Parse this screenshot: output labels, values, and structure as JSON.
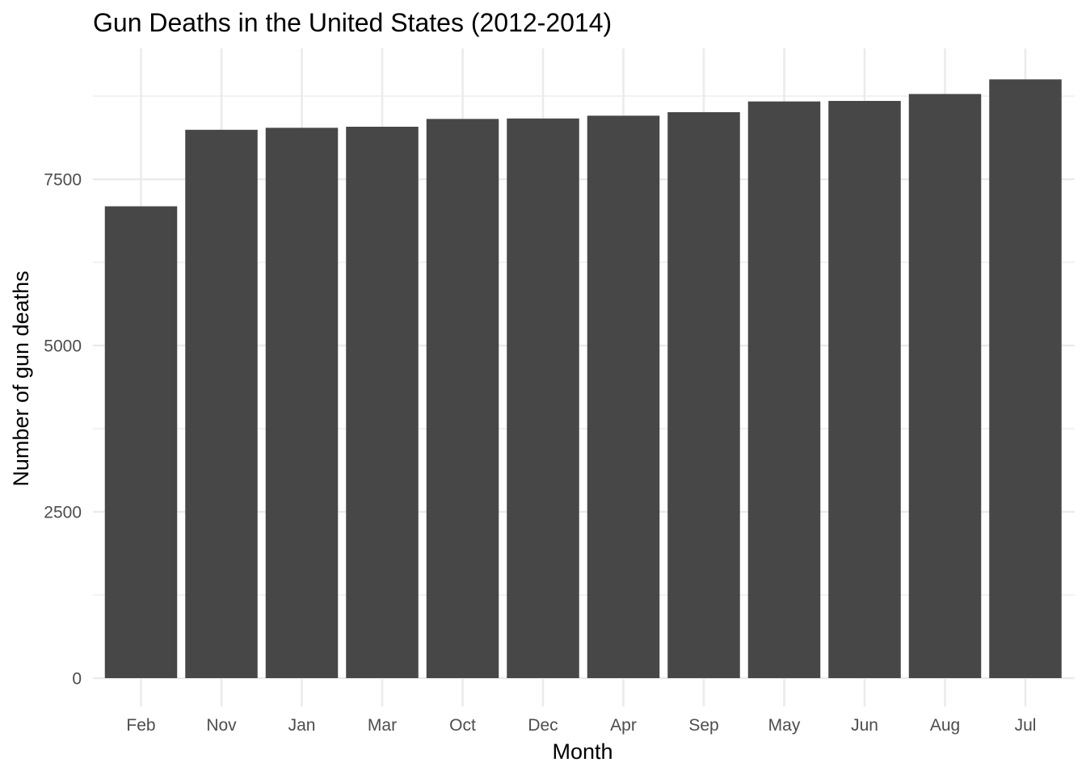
{
  "chart_data": {
    "type": "bar",
    "title": "Gun Deaths in the United States (2012-2014)",
    "xlabel": "Month",
    "ylabel": "Number of gun deaths",
    "categories": [
      "Feb",
      "Nov",
      "Jan",
      "Mar",
      "Oct",
      "Dec",
      "Apr",
      "Sep",
      "May",
      "Jun",
      "Aug",
      "Jul"
    ],
    "values": [
      7093,
      8243,
      8273,
      8289,
      8406,
      8413,
      8455,
      8508,
      8669,
      8677,
      8781,
      9001
    ],
    "ylim": [
      0,
      9450
    ],
    "yticks": [
      0,
      2500,
      5000,
      7500
    ],
    "ytick_labels": [
      "0",
      "2500",
      "5000",
      "7500"
    ],
    "grid": true,
    "legend": "none",
    "bar_color": "#474747",
    "grid_color": "#ebebeb",
    "background": "#ffffff"
  }
}
